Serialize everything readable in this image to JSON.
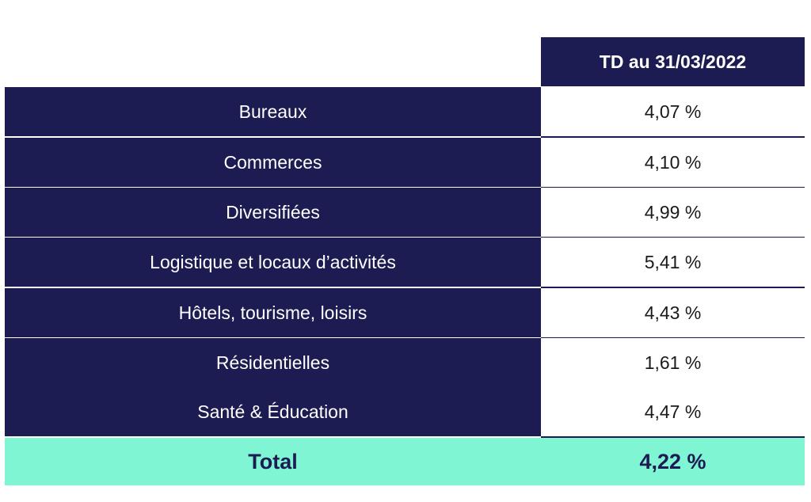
{
  "chart_data": {
    "type": "table",
    "column_header": "TD au 31/03/2022",
    "rows": [
      {
        "label": "Bureaux",
        "value": "4,07 %"
      },
      {
        "label": "Commerces",
        "value": "4,10 %"
      },
      {
        "label": "Diversifiées",
        "value": "4,99 %"
      },
      {
        "label": "Logistique et locaux d’activités",
        "value": "5,41 %"
      },
      {
        "label": "Hôtels, tourisme, loisirs",
        "value": "4,43 %"
      },
      {
        "label": "Résidentielles",
        "value": "1,61 %"
      },
      {
        "label": "Santé & Éducation",
        "value": "4,47 %"
      }
    ],
    "total": {
      "label": "Total",
      "value": "4,22 %"
    }
  },
  "colors": {
    "navy": "#1c1b52",
    "total_bg": "#7ff5d4",
    "total_text": "#1c1b52",
    "divider": "#1c1b52"
  }
}
